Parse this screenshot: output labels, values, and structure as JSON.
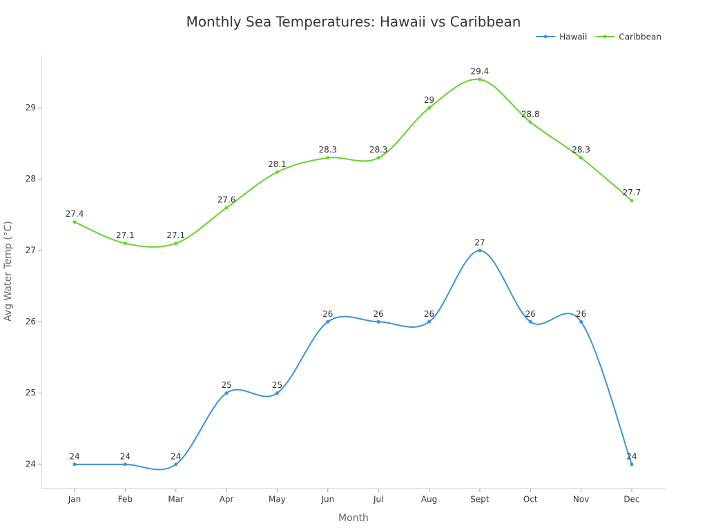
{
  "chart_data": {
    "type": "line",
    "title": "Monthly Sea Temperatures: Hawaii vs Caribbean",
    "x_label": "Month",
    "y_label": "Avg Water Temp (°C)",
    "categories": [
      "Jan",
      "Feb",
      "Mar",
      "Apr",
      "May",
      "Jun",
      "Jul",
      "Aug",
      "Sept",
      "Oct",
      "Nov",
      "Dec"
    ],
    "series": [
      {
        "name": "Hawaii",
        "color": "#3a93dd",
        "values": [
          24,
          24,
          24,
          25,
          25,
          26,
          26,
          26,
          27,
          26,
          26,
          24
        ]
      },
      {
        "name": "Caribbean",
        "color": "#66d42a",
        "values": [
          27.4,
          27.1,
          27.1,
          27.6,
          28.1,
          28.3,
          28.3,
          29,
          29.4,
          28.8,
          28.3,
          27.7
        ]
      }
    ],
    "ylim": [
      23.66,
      29.74
    ],
    "yticks": [
      24,
      25,
      26,
      27,
      28,
      29
    ],
    "grid": false,
    "legend": "top-right"
  }
}
